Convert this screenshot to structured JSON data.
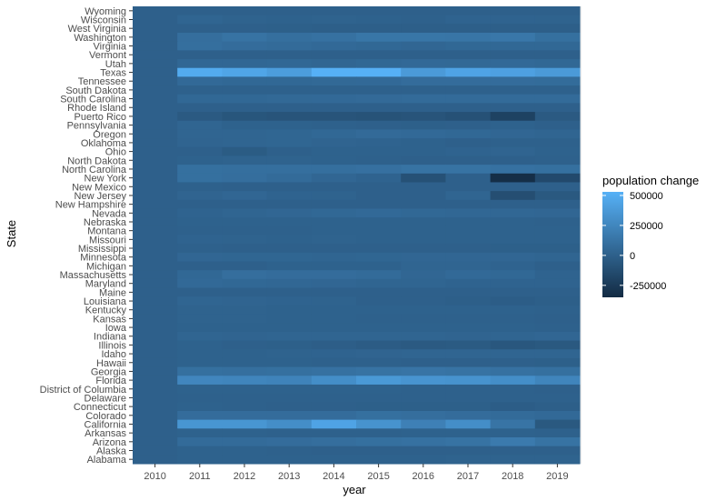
{
  "chart_data": {
    "type": "heatmap",
    "xlabel": "year",
    "ylabel": "State",
    "x": [
      "2010",
      "2011",
      "2012",
      "2013",
      "2014",
      "2015",
      "2016",
      "2017",
      "2018",
      "2019"
    ],
    "y": [
      "Wyoming",
      "Wisconsin",
      "West Virginia",
      "Washington",
      "Virginia",
      "Vermont",
      "Utah",
      "Texas",
      "Tennessee",
      "South Dakota",
      "South Carolina",
      "Rhode Island",
      "Puerto Rico",
      "Pennsylvania",
      "Oregon",
      "Oklahoma",
      "Ohio",
      "North Dakota",
      "North Carolina",
      "New York",
      "New Mexico",
      "New Jersey",
      "New Hampshire",
      "Nevada",
      "Nebraska",
      "Montana",
      "Missouri",
      "Mississippi",
      "Minnesota",
      "Michigan",
      "Massachusetts",
      "Maryland",
      "Maine",
      "Louisiana",
      "Kentucky",
      "Kansas",
      "Iowa",
      "Indiana",
      "Illinois",
      "Idaho",
      "Hawaii",
      "Georgia",
      "Florida",
      "District of Columbia",
      "Delaware",
      "Connecticut",
      "Colorado",
      "California",
      "Arkansas",
      "Arizona",
      "Alaska",
      "Alabama"
    ],
    "z": [
      [
        0,
        0,
        0,
        0,
        0,
        0,
        0,
        0,
        0,
        0
      ],
      [
        0,
        30000,
        15000,
        10000,
        15000,
        10000,
        5000,
        20000,
        20000,
        15000
      ],
      [
        0,
        0,
        0,
        -5000,
        -10000,
        -10000,
        -10000,
        -10000,
        -10000,
        -10000
      ],
      [
        0,
        90000,
        120000,
        95000,
        110000,
        140000,
        140000,
        135000,
        150000,
        100000
      ],
      [
        0,
        95000,
        80000,
        70000,
        60000,
        50000,
        40000,
        50000,
        50000,
        50000
      ],
      [
        0,
        0,
        0,
        0,
        0,
        0,
        0,
        0,
        0,
        0
      ],
      [
        0,
        45000,
        45000,
        50000,
        40000,
        50000,
        60000,
        55000,
        60000,
        50000
      ],
      [
        0,
        490000,
        450000,
        400000,
        525000,
        525000,
        380000,
        440000,
        420000,
        380000
      ],
      [
        0,
        60000,
        50000,
        50000,
        55000,
        60000,
        80000,
        80000,
        80000,
        75000
      ],
      [
        0,
        5000,
        5000,
        5000,
        5000,
        5000,
        5000,
        5000,
        5000,
        5000
      ],
      [
        0,
        50000,
        50000,
        55000,
        60000,
        65000,
        70000,
        70000,
        70000,
        70000
      ],
      [
        0,
        0,
        0,
        0,
        0,
        0,
        0,
        0,
        0,
        0
      ],
      [
        0,
        -40000,
        -70000,
        -80000,
        -80000,
        -90000,
        -80000,
        -100000,
        -200000,
        -40000
      ],
      [
        0,
        30000,
        10000,
        10000,
        5000,
        0,
        -5000,
        0,
        10000,
        0
      ],
      [
        0,
        30000,
        30000,
        35000,
        50000,
        65000,
        60000,
        50000,
        40000,
        30000
      ],
      [
        0,
        25000,
        30000,
        35000,
        25000,
        20000,
        10000,
        0,
        5000,
        5000
      ],
      [
        0,
        0,
        -30000,
        0,
        10000,
        10000,
        10000,
        20000,
        25000,
        10000
      ],
      [
        0,
        10000,
        15000,
        15000,
        10000,
        5000,
        0,
        0,
        0,
        5000
      ],
      [
        0,
        100000,
        95000,
        95000,
        95000,
        105000,
        120000,
        120000,
        110000,
        100000
      ],
      [
        0,
        100000,
        90000,
        70000,
        40000,
        20000,
        -100000,
        0,
        -330000,
        -150000
      ],
      [
        0,
        5000,
        0,
        0,
        0,
        0,
        0,
        0,
        0,
        0
      ],
      [
        0,
        25000,
        40000,
        20000,
        15000,
        0,
        0,
        30000,
        -120000,
        -50000
      ],
      [
        0,
        0,
        0,
        0,
        0,
        0,
        0,
        0,
        0,
        0
      ],
      [
        0,
        20000,
        30000,
        40000,
        50000,
        60000,
        50000,
        45000,
        45000,
        40000
      ],
      [
        0,
        10000,
        10000,
        10000,
        10000,
        10000,
        10000,
        10000,
        10000,
        5000
      ],
      [
        0,
        5000,
        5000,
        5000,
        10000,
        10000,
        10000,
        10000,
        10000,
        10000
      ],
      [
        0,
        20000,
        15000,
        10000,
        15000,
        10000,
        10000,
        10000,
        10000,
        10000
      ],
      [
        0,
        5000,
        0,
        0,
        0,
        0,
        0,
        0,
        -5000,
        -5000
      ],
      [
        0,
        40000,
        35000,
        35000,
        30000,
        35000,
        40000,
        40000,
        40000,
        30000
      ],
      [
        0,
        0,
        0,
        10000,
        10000,
        10000,
        30000,
        30000,
        20000,
        0
      ],
      [
        0,
        50000,
        90000,
        80000,
        80000,
        70000,
        40000,
        60000,
        50000,
        20000
      ],
      [
        0,
        60000,
        50000,
        45000,
        40000,
        30000,
        30000,
        20000,
        20000,
        20000
      ],
      [
        0,
        0,
        0,
        0,
        0,
        0,
        0,
        0,
        0,
        0
      ],
      [
        0,
        30000,
        25000,
        20000,
        15000,
        0,
        0,
        -10000,
        -20000,
        -10000
      ],
      [
        0,
        15000,
        15000,
        10000,
        10000,
        10000,
        10000,
        10000,
        10000,
        5000
      ],
      [
        0,
        15000,
        15000,
        10000,
        10000,
        5000,
        5000,
        5000,
        5000,
        0
      ],
      [
        0,
        10000,
        10000,
        10000,
        10000,
        10000,
        10000,
        10000,
        10000,
        5000
      ],
      [
        0,
        30000,
        25000,
        30000,
        30000,
        30000,
        30000,
        25000,
        30000,
        40000
      ],
      [
        0,
        10000,
        0,
        -5000,
        -15000,
        -25000,
        -40000,
        -35000,
        -60000,
        -50000
      ],
      [
        0,
        10000,
        10000,
        15000,
        20000,
        25000,
        30000,
        30000,
        30000,
        30000
      ],
      [
        0,
        10000,
        10000,
        10000,
        5000,
        5000,
        0,
        0,
        0,
        -5000
      ],
      [
        0,
        100000,
        95000,
        100000,
        110000,
        120000,
        130000,
        120000,
        110000,
        100000
      ],
      [
        0,
        250000,
        240000,
        230000,
        300000,
        370000,
        340000,
        330000,
        300000,
        240000
      ],
      [
        0,
        10000,
        10000,
        10000,
        10000,
        10000,
        5000,
        5000,
        5000,
        0
      ],
      [
        0,
        5000,
        5000,
        5000,
        5000,
        5000,
        5000,
        5000,
        5000,
        5000
      ],
      [
        0,
        10000,
        5000,
        0,
        0,
        -5000,
        -5000,
        -5000,
        -20000,
        -10000
      ],
      [
        0,
        80000,
        80000,
        80000,
        80000,
        100000,
        90000,
        80000,
        70000,
        60000
      ],
      [
        0,
        350000,
        350000,
        300000,
        440000,
        330000,
        210000,
        300000,
        130000,
        -50000
      ],
      [
        0,
        10000,
        10000,
        5000,
        5000,
        5000,
        10000,
        10000,
        10000,
        5000
      ],
      [
        0,
        70000,
        70000,
        80000,
        90000,
        100000,
        110000,
        120000,
        170000,
        120000
      ],
      [
        0,
        10000,
        10000,
        5000,
        0,
        0,
        0,
        0,
        0,
        0
      ],
      [
        0,
        10000,
        10000,
        10000,
        10000,
        10000,
        10000,
        15000,
        15000,
        15000
      ]
    ],
    "zlim": [
      -350000,
      530000
    ],
    "color_low": "#132b43",
    "color_high": "#56b1f7",
    "legend_title": "population change",
    "legend_ticks": [
      "500000",
      "250000",
      "0",
      "-250000"
    ],
    "legend_tick_values": [
      500000,
      250000,
      0,
      -250000
    ],
    "legend_placement": "right",
    "panel_background": "#ebebeb",
    "grid": false
  }
}
